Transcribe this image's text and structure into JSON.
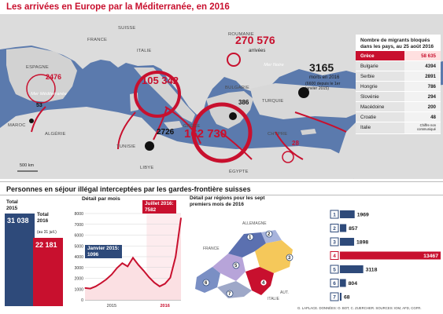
{
  "title": "Les arrivées en Europe par la Méditerranée, en 2016",
  "map": {
    "countries": [
      "FRANCE",
      "ITALIE",
      "ESPAGNE",
      "SUISSE",
      "ROUMANIE",
      "BULGARIE",
      "GRÈCE",
      "TURQUIE",
      "ALGÉRIE",
      "TUNISIE",
      "MAROC",
      "LIBYE",
      "ÉGYPTE",
      "CHYPRE"
    ],
    "seas": [
      "Mer Méditerranée",
      "Mer Noire"
    ],
    "arrivals": [
      {
        "place": "ESPAGNE",
        "value": "2476"
      },
      {
        "place": "ITALIE",
        "value": "105 342"
      },
      {
        "place": "GRÈCE",
        "value": "162 730"
      },
      {
        "place": "CHYPRE",
        "value": "28"
      }
    ],
    "deaths_points": [
      "53",
      "2726",
      "386"
    ],
    "total_arrivals": {
      "value": "270 576",
      "label": "arrivées"
    },
    "deaths": {
      "value": "3165",
      "label": "morts en 2016",
      "note": "(6600 depuis le 1er janvier 2015)"
    },
    "scale": "500 km",
    "colors": {
      "red": "#c8102e",
      "sea": "#5b7aad",
      "land": "#dcdcdc"
    }
  },
  "blocked": {
    "title": "Nombre de migrants bloqués dans les pays, au 25 août 2016",
    "rows": [
      {
        "country": "Grèce",
        "value": "58 635"
      },
      {
        "country": "Bulgarie",
        "value": "4394"
      },
      {
        "country": "Serbie",
        "value": "2891"
      },
      {
        "country": "Hongrie",
        "value": "786"
      },
      {
        "country": "Slovénie",
        "value": "294"
      },
      {
        "country": "Macédoine",
        "value": "200"
      },
      {
        "country": "Croatie",
        "value": "48"
      },
      {
        "country": "Italie",
        "value": "Chiffre non communiqué"
      }
    ]
  },
  "section2_title": "Personnes en séjour illégal interceptées par les gardes-frontière suisses",
  "totals": {
    "t2015_label": "Total 2015",
    "t2015_value": "31 038",
    "t2016_label": "Total 2016",
    "t2016_sub": "(au 31 juil.)",
    "t2016_value": "22 181"
  },
  "monthly_title": "Détail par mois",
  "regions_title": "Détail par régions pour les sept premiers mois de 2016",
  "regions_map_labels": [
    "ALLEMAGNE",
    "FRANCE",
    "AUT.",
    "ITALIE"
  ],
  "chart_data": [
    {
      "type": "bar",
      "title": "",
      "categories": [
        "Total 2015",
        "Total 2016"
      ],
      "values": [
        31038,
        22181
      ]
    },
    {
      "type": "area",
      "title": "Détail par mois",
      "x": [
        "2015-01",
        "2015-02",
        "2015-03",
        "2015-04",
        "2015-05",
        "2015-06",
        "2015-07",
        "2015-08",
        "2015-09",
        "2015-10",
        "2015-11",
        "2015-12",
        "2016-01",
        "2016-02",
        "2016-03",
        "2016-04",
        "2016-05",
        "2016-06",
        "2016-07"
      ],
      "series": [
        {
          "values": [
            1096,
            1050,
            1250,
            1550,
            1900,
            2350,
            2950,
            3400,
            3100,
            3900,
            3250,
            2700,
            2100,
            1600,
            1250,
            1500,
            2050,
            4000,
            7582
          ]
        }
      ],
      "ylim": [
        0,
        8000
      ],
      "yticks": [
        0,
        1000,
        2000,
        3000,
        4000,
        5000,
        6000,
        7000,
        8000
      ],
      "xticks": [
        "2015",
        "2016"
      ],
      "annotations": [
        {
          "label": "Janvier 2015:",
          "value": "1096"
        },
        {
          "label": "Juillet 2016:",
          "value": "7582"
        }
      ],
      "grid": true
    },
    {
      "type": "bar",
      "title": "Détail par régions pour les sept premiers mois de 2016",
      "categories": [
        "1",
        "2",
        "3",
        "4",
        "5",
        "6",
        "7"
      ],
      "values": [
        1969,
        857,
        1898,
        13467,
        3118,
        804,
        68
      ],
      "colors": [
        "#2e4a7a",
        "#2e4a7a",
        "#2e4a7a",
        "#c8102e",
        "#2e4a7a",
        "#2e4a7a",
        "#2e4a7a"
      ]
    }
  ],
  "credits": "G. LAPLACE. DONNÉES: O. BOT, C. ZUERCHER. SOURCES: IOM, AFD, CGFR."
}
